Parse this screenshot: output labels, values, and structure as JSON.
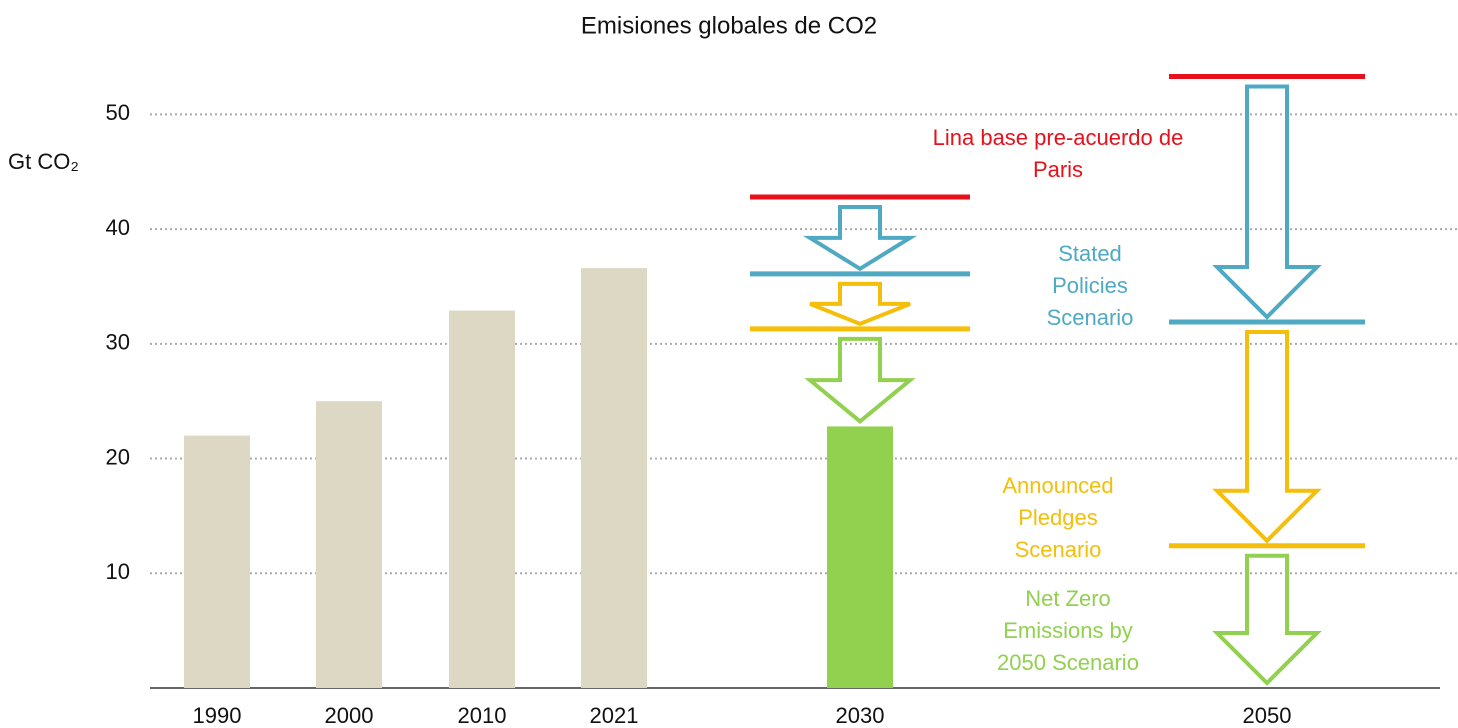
{
  "chart_data": {
    "type": "bar",
    "title": "Emisiones globales de CO2",
    "y_label": "Gt CO₂",
    "categories": [
      "1990",
      "2000",
      "2010",
      "2021",
      "2030",
      "2050"
    ],
    "series": [
      {
        "color": "#ddd8c4",
        "values": [
          22,
          25,
          32.9,
          36.6,
          null,
          null
        ]
      },
      {
        "name": "Lina base pre-acuerdo de Paris",
        "color": "#e8101a",
        "values": [
          null,
          null,
          null,
          null,
          42.8,
          53.3
        ]
      },
      {
        "name": "Stated Policies Scenario",
        "color": "#4fa9c3",
        "values": [
          null,
          null,
          null,
          null,
          36.1,
          31.9
        ]
      },
      {
        "name": "Announced Pledges Scenario",
        "color": "#f5be0a",
        "values": [
          null,
          null,
          null,
          null,
          31.3,
          12.4
        ]
      },
      {
        "name": "Net Zero Emissions by 2050 Scenario",
        "color": "#92d050",
        "values": [
          null,
          null,
          null,
          null,
          22.8,
          0
        ]
      }
    ],
    "ylim": [
      0,
      55
    ],
    "yticks": [
      10,
      20,
      30,
      40,
      50
    ],
    "grid": true
  }
}
